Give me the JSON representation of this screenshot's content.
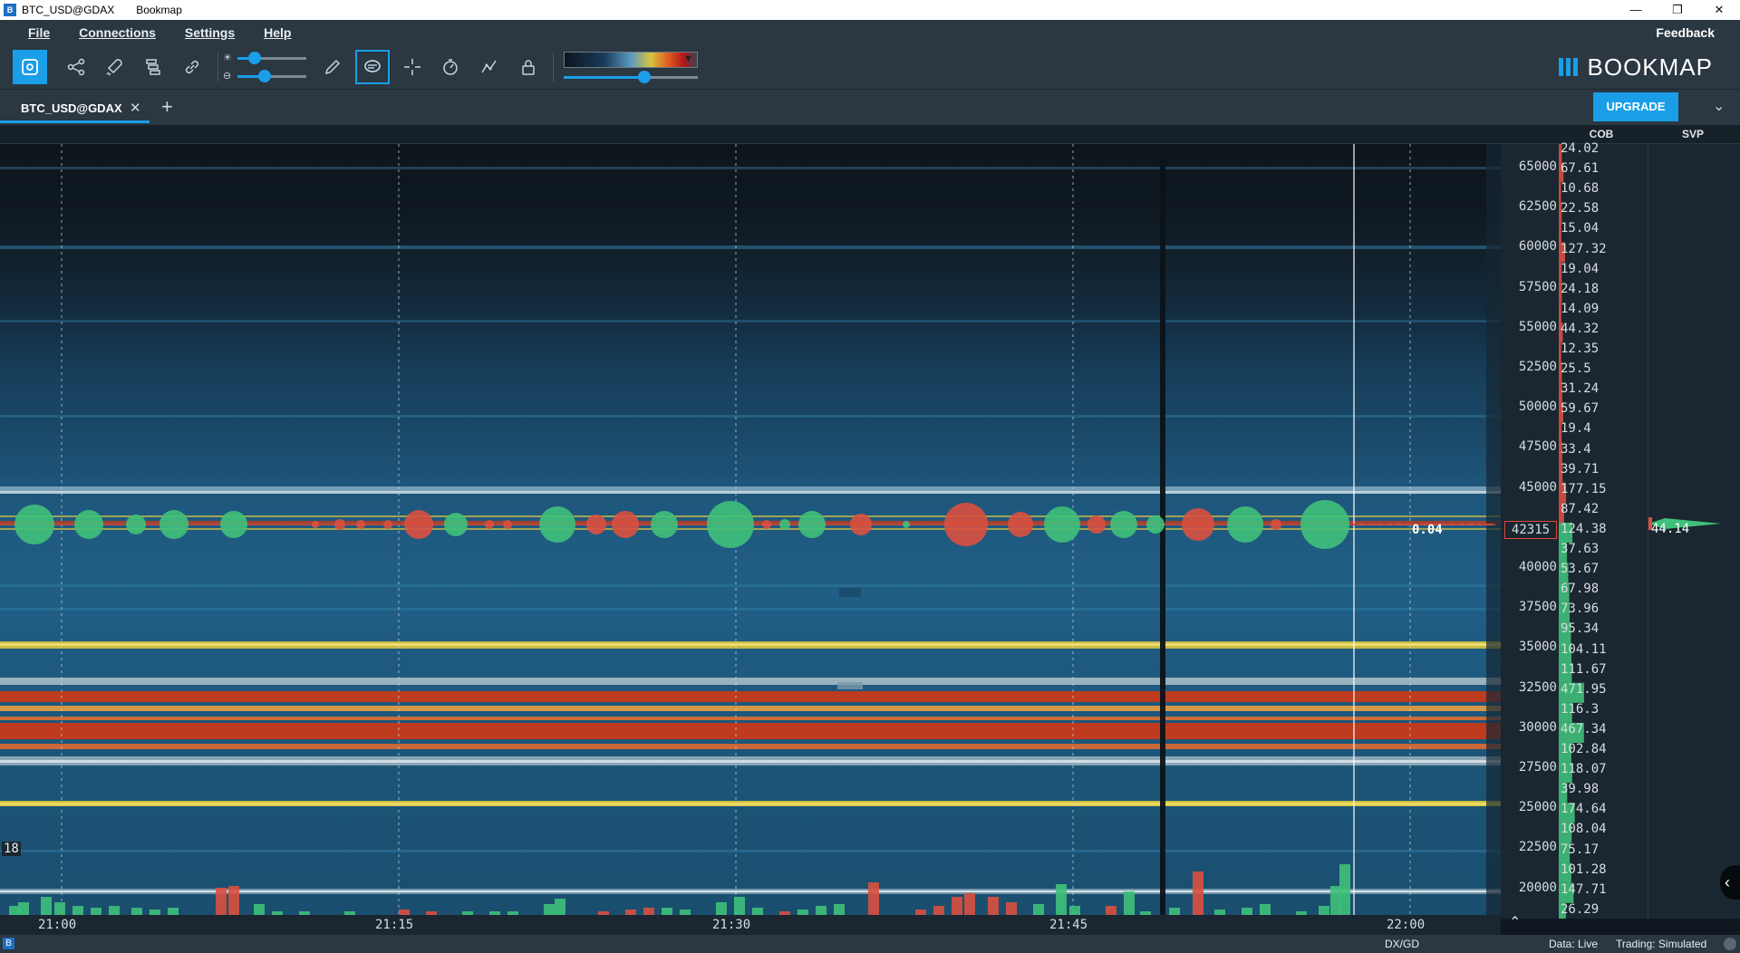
{
  "window": {
    "title": "BTC_USD@GDAX",
    "app_name": "Bookmap",
    "controls": [
      "—",
      "❐",
      "✕"
    ]
  },
  "menu": {
    "items": [
      "File",
      "Connections",
      "Settings",
      "Help"
    ],
    "feedback_label": "Feedback"
  },
  "toolbar": {
    "tools": [
      "heatmap-icon",
      "share-icon",
      "rocket-icon",
      "layers-icon",
      "link-icon",
      "pencil-icon",
      "chat-icon",
      "crosshair-icon",
      "timer-icon",
      "indicator-icon",
      "lock-icon"
    ],
    "brightness_level": 0.25,
    "contrast_level": 0.4,
    "speed_level": 0.6,
    "logo_text": "BOOKMAP"
  },
  "tabs": {
    "items": [
      {
        "label": "BTC_USD@GDAX",
        "active": true
      }
    ],
    "add_label": "+",
    "upgrade_label": "UPGRADE"
  },
  "panels": {
    "cob_header": "COB",
    "svp_header": "SVP"
  },
  "price_axis": {
    "labels": [
      "65000",
      "62500",
      "60000",
      "57500",
      "55000",
      "52500",
      "50000",
      "47500",
      "45000",
      "42315",
      "40000",
      "37500",
      "35000",
      "32500",
      "30000",
      "27500",
      "25000",
      "22500",
      "20000"
    ],
    "current_price": "42315"
  },
  "cob_values": [
    "24.02",
    "67.61",
    "10.68",
    "22.58",
    "15.04",
    "127.32",
    "19.04",
    "24.18",
    "14.09",
    "44.32",
    "12.35",
    "25.5",
    "31.24",
    "59.67",
    "19.4",
    "33.4",
    "39.71",
    "177.15",
    "87.42",
    "124.38",
    "37.63",
    "53.67",
    "67.98",
    "73.96",
    "95.34",
    "104.11",
    "111.67",
    "471.95",
    "116.3",
    "467.34",
    "102.84",
    "118.07",
    "39.98",
    "174.64",
    "108.04",
    "75.17",
    "101.28",
    "147.71",
    "26.29"
  ],
  "svp": {
    "value": "44.14"
  },
  "chart": {
    "last_trade_label": "0.04",
    "left_counter": "18",
    "time_labels": [
      "21:00",
      "21:15",
      "21:30",
      "21:45",
      "22:00"
    ],
    "heat_colors": {
      "cold": "#1e5a80",
      "warm": "#d8c440",
      "hot": "#c83a1a"
    }
  },
  "status": {
    "exchange": "DX/GD",
    "data_mode": "Data: Live",
    "trading_mode": "Trading: Simulated"
  },
  "colors": {
    "accent": "#1a9ee8",
    "buy": "#3fc07a",
    "sell": "#d9503f",
    "toolbar_bg": "#2b3741"
  }
}
